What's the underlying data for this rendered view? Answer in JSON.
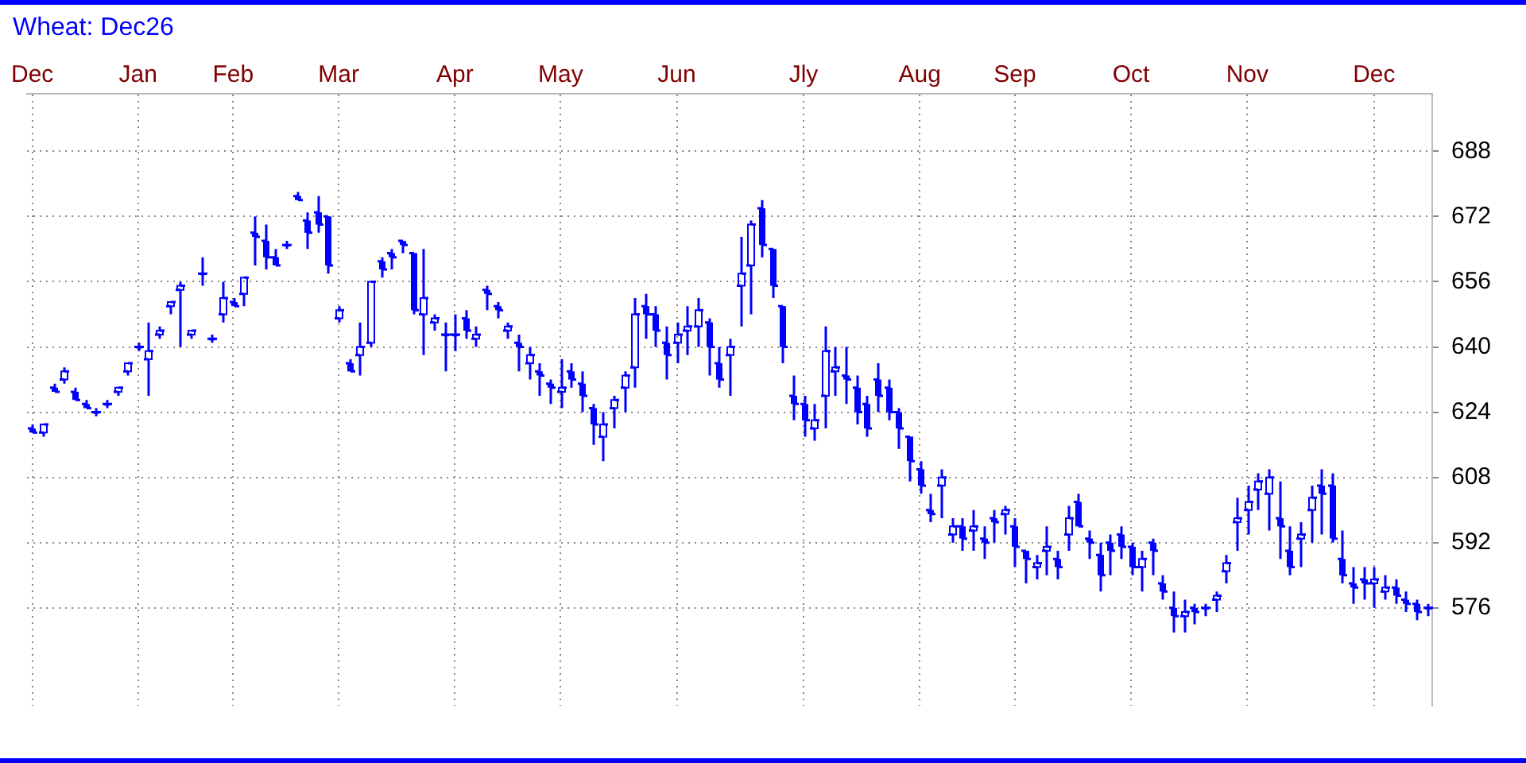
{
  "chart_data": {
    "type": "candlestick",
    "title": "Wheat: Dec26",
    "color": "#0000ff",
    "grid": true,
    "legend": false,
    "categories": [
      "Dec",
      null,
      null,
      null,
      null,
      null,
      null,
      null,
      null,
      null,
      "Jan",
      null,
      null,
      null,
      null,
      null,
      null,
      null,
      null,
      "Feb",
      null,
      null,
      null,
      null,
      null,
      null,
      null,
      null,
      null,
      "Mar",
      null,
      null,
      null,
      null,
      null,
      null,
      null,
      null,
      null,
      null,
      "Apr",
      null,
      null,
      null,
      null,
      null,
      null,
      null,
      null,
      null,
      "May",
      null,
      null,
      null,
      null,
      null,
      null,
      null,
      null,
      null,
      null,
      "Jun",
      null,
      null,
      null,
      null,
      null,
      null,
      null,
      null,
      null,
      null,
      null,
      "Jly",
      null,
      null,
      null,
      null,
      null,
      null,
      null,
      null,
      null,
      null,
      "Aug",
      null,
      null,
      null,
      null,
      null,
      null,
      null,
      null,
      "Sep",
      null,
      null,
      null,
      null,
      null,
      null,
      null,
      null,
      null,
      null,
      "Oct",
      null,
      null,
      null,
      null,
      null,
      null,
      null,
      null,
      null,
      null,
      "Nov",
      null,
      null,
      null,
      null,
      null,
      null,
      null,
      null,
      null,
      null,
      null,
      "Dec",
      null,
      null,
      null,
      null,
      null
    ],
    "ylim": [
      552,
      702
    ],
    "yticks": [
      576,
      592,
      608,
      624,
      640,
      656,
      672,
      688
    ],
    "ohlc": [
      [
        620,
        621,
        619,
        619
      ],
      [
        619,
        621,
        618,
        621
      ],
      [
        630,
        631,
        629,
        629
      ],
      [
        632,
        635,
        631,
        634
      ],
      [
        629,
        630,
        627,
        627
      ],
      [
        626,
        627,
        625,
        625
      ],
      [
        624,
        625,
        623,
        624
      ],
      [
        626,
        627,
        625,
        626
      ],
      [
        629,
        630,
        628,
        630
      ],
      [
        634,
        636,
        633,
        636
      ],
      [
        640,
        641,
        639,
        640
      ],
      [
        637,
        646,
        628,
        639
      ],
      [
        643,
        645,
        642,
        644
      ],
      [
        650,
        651,
        648,
        651
      ],
      [
        654,
        656,
        640,
        655
      ],
      [
        643,
        644,
        642,
        644
      ],
      [
        658,
        662,
        655,
        658
      ],
      [
        642,
        643,
        641,
        642
      ],
      [
        648,
        656,
        646,
        652
      ],
      [
        651,
        652,
        650,
        650
      ],
      [
        653,
        657,
        650,
        657
      ],
      [
        668,
        672,
        660,
        667
      ],
      [
        666,
        670,
        659,
        662
      ],
      [
        662,
        664,
        660,
        660
      ],
      [
        665,
        666,
        664,
        665
      ],
      [
        677,
        678,
        676,
        676
      ],
      [
        671,
        673,
        664,
        668
      ],
      [
        673,
        677,
        668,
        670
      ],
      [
        672,
        672,
        658,
        660
      ],
      [
        647,
        650,
        646,
        649
      ],
      [
        636,
        637,
        634,
        634
      ],
      [
        638,
        646,
        633,
        640
      ],
      [
        641,
        656,
        640,
        656
      ],
      [
        661,
        662,
        657,
        659
      ],
      [
        663,
        664,
        659,
        662
      ],
      [
        666,
        666,
        663,
        665
      ],
      [
        663,
        663,
        648,
        649
      ],
      [
        648,
        664,
        638,
        652
      ],
      [
        646,
        648,
        644,
        647
      ],
      [
        643,
        646,
        634,
        643
      ],
      [
        643,
        648,
        639,
        643
      ],
      [
        647,
        649,
        642,
        644
      ],
      [
        642,
        645,
        640,
        643
      ],
      [
        654,
        655,
        649,
        653
      ],
      [
        650,
        651,
        647,
        649
      ],
      [
        644,
        646,
        642,
        645
      ],
      [
        641,
        643,
        634,
        640
      ],
      [
        636,
        640,
        632,
        638
      ],
      [
        634,
        636,
        628,
        633
      ],
      [
        631,
        632,
        626,
        630
      ],
      [
        629,
        637,
        625,
        630
      ],
      [
        634,
        636,
        630,
        632
      ],
      [
        631,
        634,
        624,
        628
      ],
      [
        625,
        626,
        616,
        621
      ],
      [
        618,
        624,
        612,
        621
      ],
      [
        625,
        628,
        620,
        627
      ],
      [
        630,
        634,
        624,
        633
      ],
      [
        635,
        652,
        630,
        648
      ],
      [
        650,
        653,
        642,
        648
      ],
      [
        648,
        650,
        640,
        644
      ],
      [
        641,
        645,
        632,
        638
      ],
      [
        641,
        646,
        636,
        643
      ],
      [
        644,
        650,
        638,
        645
      ],
      [
        645,
        652,
        640,
        649
      ],
      [
        646,
        647,
        633,
        640
      ],
      [
        636,
        640,
        630,
        632
      ],
      [
        638,
        642,
        628,
        640
      ],
      [
        655,
        667,
        645,
        658
      ],
      [
        660,
        671,
        648,
        670
      ],
      [
        674,
        676,
        662,
        665
      ],
      [
        664,
        664,
        652,
        655
      ],
      [
        650,
        650,
        636,
        640
      ],
      [
        628,
        633,
        622,
        626
      ],
      [
        626,
        628,
        618,
        622
      ],
      [
        620,
        626,
        617,
        622
      ],
      [
        628,
        645,
        620,
        639
      ],
      [
        634,
        640,
        628,
        635
      ],
      [
        633,
        640,
        626,
        632
      ],
      [
        630,
        633,
        621,
        624
      ],
      [
        626,
        628,
        618,
        620
      ],
      [
        632,
        636,
        624,
        628
      ],
      [
        630,
        632,
        622,
        624
      ],
      [
        624,
        625,
        615,
        620
      ],
      [
        618,
        618,
        607,
        612
      ],
      [
        610,
        612,
        604,
        606
      ],
      [
        600,
        604,
        597,
        599
      ],
      [
        606,
        610,
        598,
        608
      ],
      [
        594,
        598,
        592,
        596
      ],
      [
        596,
        598,
        590,
        593
      ],
      [
        595,
        600,
        590,
        596
      ],
      [
        593,
        596,
        588,
        592
      ],
      [
        598,
        600,
        592,
        597
      ],
      [
        599,
        601,
        594,
        600
      ],
      [
        596,
        598,
        586,
        591
      ],
      [
        590,
        590,
        582,
        588
      ],
      [
        586,
        589,
        583,
        587
      ],
      [
        590,
        596,
        584,
        591
      ],
      [
        588,
        590,
        583,
        586
      ],
      [
        594,
        601,
        590,
        598
      ],
      [
        602,
        604,
        596,
        596
      ],
      [
        593,
        595,
        588,
        592
      ],
      [
        589,
        592,
        580,
        584
      ],
      [
        592,
        594,
        584,
        590
      ],
      [
        594,
        596,
        588,
        591
      ],
      [
        591,
        592,
        584,
        586
      ],
      [
        586,
        590,
        580,
        588
      ],
      [
        592,
        593,
        584,
        590
      ],
      [
        582,
        584,
        578,
        580
      ],
      [
        576,
        580,
        570,
        574
      ],
      [
        574,
        578,
        570,
        575
      ],
      [
        576,
        577,
        572,
        575
      ],
      [
        576,
        577,
        574,
        576
      ],
      [
        578,
        580,
        575,
        579
      ],
      [
        585,
        589,
        582,
        587
      ],
      [
        597,
        603,
        590,
        598
      ],
      [
        600,
        606,
        594,
        602
      ],
      [
        605,
        609,
        600,
        607
      ],
      [
        604,
        610,
        595,
        608
      ],
      [
        598,
        607,
        588,
        596
      ],
      [
        590,
        596,
        584,
        586
      ],
      [
        593,
        597,
        586,
        594
      ],
      [
        600,
        606,
        592,
        603
      ],
      [
        606,
        610,
        594,
        604
      ],
      [
        606,
        609,
        592,
        593
      ],
      [
        588,
        595,
        582,
        584
      ],
      [
        582,
        586,
        577,
        581
      ],
      [
        583,
        586,
        578,
        582
      ],
      [
        582,
        586,
        576,
        583
      ],
      [
        580,
        584,
        578,
        581
      ],
      [
        581,
        583,
        577,
        579
      ],
      [
        578,
        580,
        575,
        577
      ],
      [
        577,
        578,
        573,
        575
      ],
      [
        576,
        577,
        574,
        576
      ]
    ]
  }
}
